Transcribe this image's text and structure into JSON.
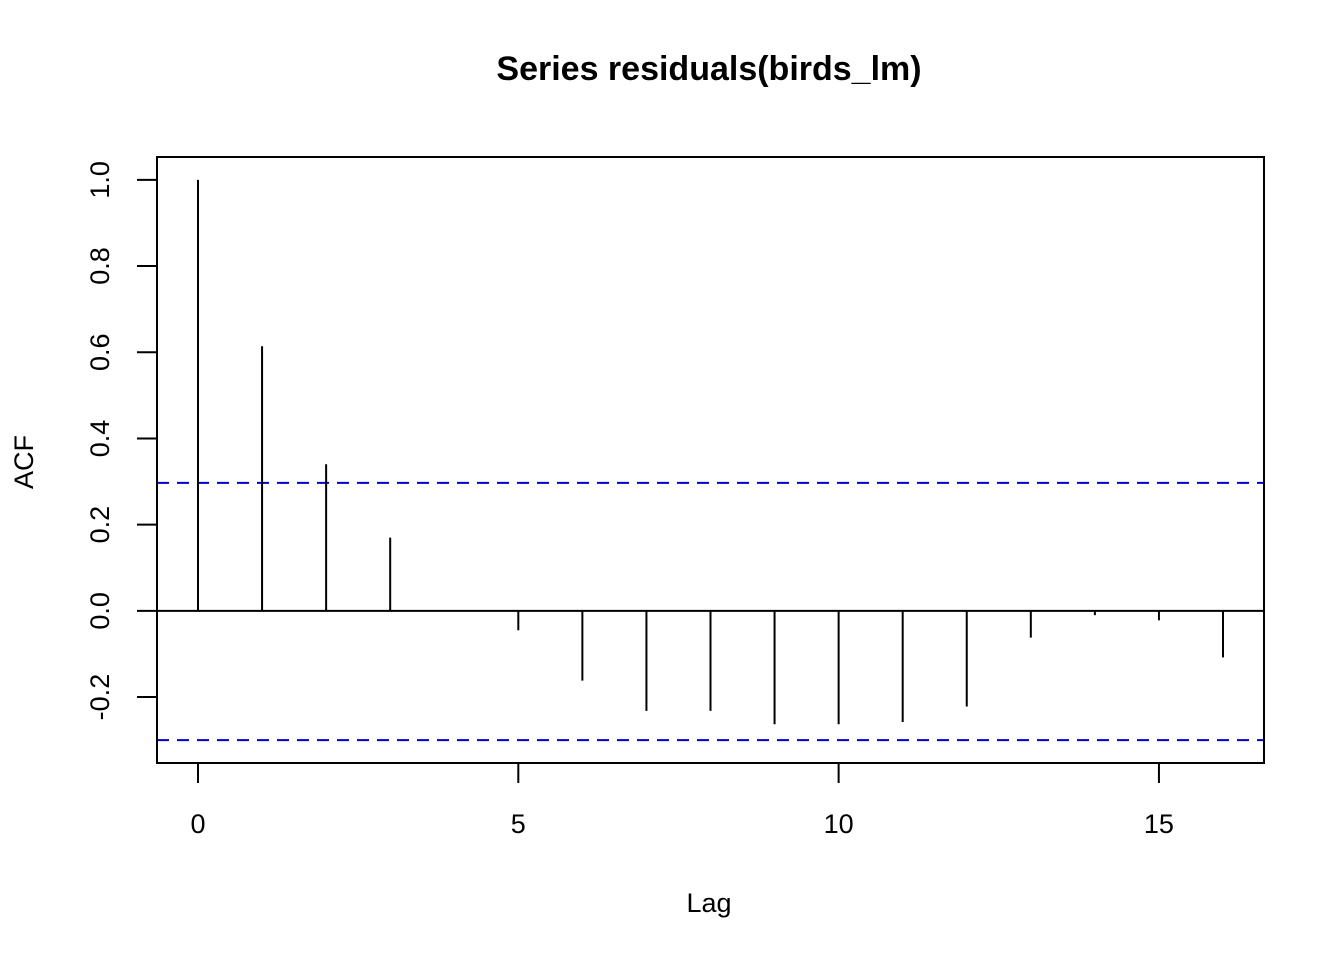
{
  "chart_data": {
    "type": "bar",
    "title": "Series  residuals(birds_lm)",
    "xlabel": "Lag",
    "ylabel": "ACF",
    "xlim": [
      -0.64,
      16.64
    ],
    "ylim": [
      -0.353,
      1.053
    ],
    "x_ticks": [
      0,
      5,
      10,
      15
    ],
    "x_tick_labels": [
      "0",
      "5",
      "10",
      "15"
    ],
    "y_ticks": [
      -0.2,
      0.0,
      0.2,
      0.4,
      0.6,
      0.8,
      1.0
    ],
    "y_tick_labels": [
      "-0.2",
      "0.0",
      "0.2",
      "0.4",
      "0.6",
      "0.8",
      "1.0"
    ],
    "lags": [
      0,
      1,
      2,
      3,
      4,
      5,
      6,
      7,
      8,
      9,
      10,
      11,
      12,
      13,
      14,
      15,
      16
    ],
    "values": [
      1.0,
      0.614,
      0.34,
      0.17,
      0.0,
      -0.045,
      -0.162,
      -0.232,
      -0.232,
      -0.263,
      -0.263,
      -0.258,
      -0.222,
      -0.062,
      -0.01,
      -0.022,
      -0.108
    ],
    "confidence_bounds": [
      0.297,
      -0.3
    ],
    "confidence_color": "#0000cc",
    "grid": false,
    "legend": "none"
  }
}
